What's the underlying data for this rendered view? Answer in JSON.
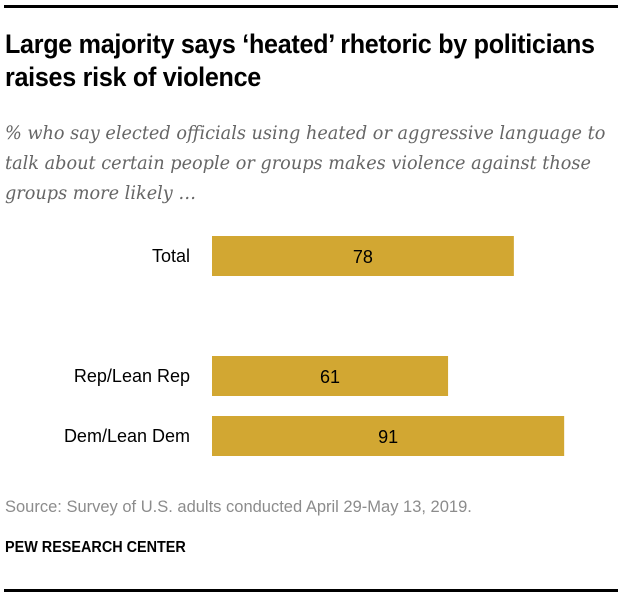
{
  "header": {
    "title": "Large majority says ‘heated’ rhetoric by politicians raises risk of violence",
    "subtitle": "% who say elected officials using heated or aggressive language to talk about certain people or groups makes violence against those groups more likely …"
  },
  "footer": {
    "source": "Source: Survey of U.S. adults conducted April 29-May 13, 2019.",
    "brand": "PEW RESEARCH CENTER"
  },
  "colors": {
    "bar": "#D2A732"
  },
  "chart_data": {
    "type": "bar",
    "orientation": "horizontal",
    "title": "Large majority says ‘heated’ rhetoric by politicians raises risk of violence",
    "subtitle": "% who say elected officials using heated or aggressive language to talk about certain people or groups makes violence against those groups more likely …",
    "categories": [
      "Total",
      "Rep/Lean Rep",
      "Dem/Lean Dem"
    ],
    "values": [
      78,
      61,
      91
    ],
    "data_labels": [
      "78",
      "61",
      "91"
    ],
    "groups": [
      [
        "Total"
      ],
      [
        "Rep/Lean Rep",
        "Dem/Lean Dem"
      ]
    ],
    "xlabel": "",
    "ylabel": "",
    "xlim": [
      0,
      100
    ],
    "grid": false,
    "legend": "none"
  }
}
